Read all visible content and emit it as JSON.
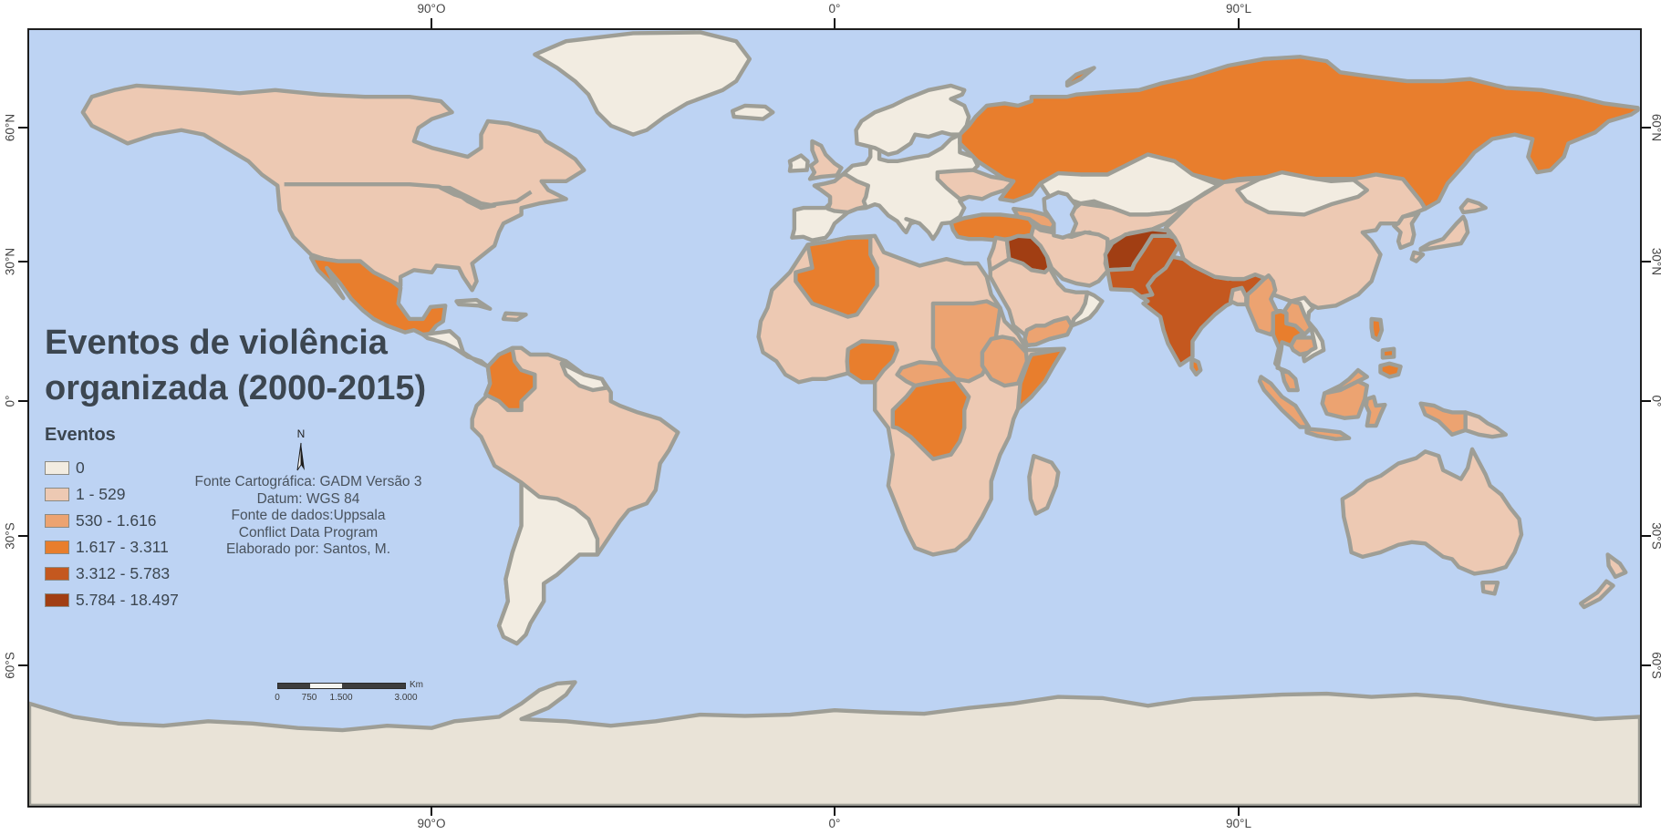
{
  "title": {
    "line1": "Eventos de violência",
    "line2": "organizada (2000-2015)"
  },
  "legend": {
    "title": "Eventos",
    "classes": [
      {
        "label": "0",
        "color": "#f2ece1"
      },
      {
        "label": "1 - 529",
        "color": "#edc9b3"
      },
      {
        "label": "530 - 1.616",
        "color": "#eca371"
      },
      {
        "label": "1.617 - 3.311",
        "color": "#e87e2d"
      },
      {
        "label": "3.312 - 5.783",
        "color": "#c4581f"
      },
      {
        "label": "5.784 - 18.497",
        "color": "#a13e13"
      }
    ]
  },
  "credits": {
    "lines": [
      "Fonte Cartográfica: GADM Versão 3",
      "Datum: WGS 84",
      "Fonte de dados:Uppsala",
      "Conflict Data Program",
      "Elaborado por: Santos, M."
    ]
  },
  "north": {
    "label": "N"
  },
  "scalebar": {
    "tick_labels": [
      "0",
      "750",
      "1.500",
      "3.000"
    ],
    "unit": "Km"
  },
  "graticule": {
    "top": [
      "90°O",
      "0°",
      "90°L"
    ],
    "bottom": [
      "90°O",
      "0°",
      "90°L"
    ],
    "left": [
      "60°N",
      "30°N",
      "0°",
      "30°S",
      "60°S"
    ],
    "right": [
      "60°N",
      "30°N",
      "0°",
      "30°S",
      "60°S"
    ]
  },
  "map": {
    "ocean_color": "#bdd3f3",
    "land_border_color": "#9e9e96",
    "no_data_color": "#e9e3d7",
    "countries": {
      "canada-usa": 1,
      "greenland": 0,
      "mexico": 3,
      "central-america": 0,
      "south-america": 1,
      "argentina-chile": 0,
      "colombia": 3,
      "guyanas": 0,
      "cuba": 0,
      "hispaniola": 1,
      "africa": 1,
      "algeria": 3,
      "nigeria": 3,
      "drc": 3,
      "somalia": 3,
      "sudan": 2,
      "ethiopia": 2,
      "car": 2,
      "madagascar": 1,
      "yemen": 2,
      "oman": 0,
      "arabia": 1,
      "levant": 1,
      "iraq": 5,
      "turkey": 3,
      "iran": 1,
      "caucasus": 2,
      "russia": 3,
      "novaya-zemlya": 3,
      "scandinavia": 0,
      "europe": 0,
      "ukraine": 1,
      "kazakhstan": 0,
      "central-asia": 1,
      "afghanistan": 5,
      "pakistan": 4,
      "india": 4,
      "nepal": 3,
      "bangladesh": 1,
      "sri-lanka": 3,
      "china": 1,
      "mongolia": 0,
      "korea": 1,
      "japan-honshu": 1,
      "japan-hokkaido": 1,
      "japan-kyushu": 1,
      "myanmar": 2,
      "thailand": 3,
      "laos": 2,
      "cambodia": 2,
      "vietnam": 0,
      "malaysia-peninsula": 2,
      "malaysia-borneo": 2,
      "indonesia-sumatra": 2,
      "indonesia-java": 2,
      "indonesia-kalimantan": 2,
      "indonesia-sulawesi": 2,
      "indonesia-papua": 2,
      "papua-new-guinea": 1,
      "philippines-luzon": 3,
      "philippines-visayas": 3,
      "philippines-mindanao": 3,
      "australia": 1,
      "tasmania": 1,
      "new-zealand-north": 1,
      "new-zealand-south": 1,
      "uk": 1,
      "ireland": 0,
      "iceland": 0,
      "france": 1,
      "antarctica": -1
    }
  }
}
